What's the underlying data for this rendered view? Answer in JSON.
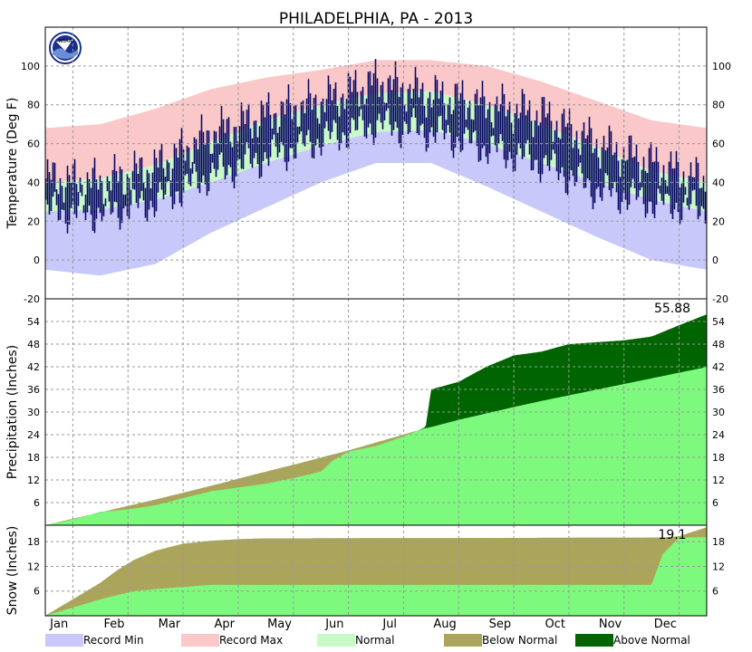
{
  "title": "PHILADELPHIA, PA - 2013",
  "logo_text": "NOAA",
  "colors": {
    "record_min": "#c8c8fa",
    "record_max": "#fac8c8",
    "normal": "#c8fac8",
    "actual_temp": "#0a0a64",
    "below_normal": "#aaa55a",
    "above_normal": "#006400",
    "normal_precip": "#7dfa7d"
  },
  "month_labels": [
    "Jan",
    "Feb",
    "Mar",
    "Apr",
    "May",
    "Jun",
    "Jul",
    "Aug",
    "Sep",
    "Oct",
    "Nov",
    "Dec"
  ],
  "chart_data": [
    {
      "type": "area",
      "ylabel": "Temperature (Deg F)",
      "ylim": [
        -20,
        120
      ],
      "yticks": [
        -20,
        0,
        20,
        40,
        60,
        80,
        100
      ],
      "grid": true,
      "x_unit": "month",
      "x": [
        0,
        1,
        2,
        3,
        4,
        5,
        6,
        7,
        8,
        9,
        10,
        11,
        12
      ],
      "series": [
        {
          "name": "Record Max",
          "values": [
            68,
            70,
            78,
            88,
            94,
            98,
            103,
            103,
            100,
            92,
            82,
            72,
            68
          ]
        },
        {
          "name": "Normal High",
          "values": [
            40,
            42,
            49,
            61,
            72,
            80,
            86,
            87,
            80,
            70,
            58,
            46,
            40
          ]
        },
        {
          "name": "Normal Low",
          "values": [
            25,
            26,
            31,
            40,
            50,
            59,
            66,
            67,
            60,
            50,
            40,
            31,
            25
          ]
        },
        {
          "name": "Record Min",
          "values": [
            -5,
            -8,
            -2,
            14,
            27,
            40,
            50,
            50,
            38,
            25,
            12,
            0,
            -5
          ]
        },
        {
          "name": "Actual High",
          "values": [
            42,
            40,
            48,
            65,
            75,
            82,
            92,
            85,
            80,
            75,
            60,
            50,
            40
          ]
        },
        {
          "name": "Actual Low",
          "values": [
            25,
            24,
            30,
            44,
            53,
            62,
            70,
            66,
            58,
            50,
            36,
            30,
            26
          ]
        }
      ]
    },
    {
      "type": "area",
      "ylabel": "Precipitation (Inches)",
      "ylim": [
        0,
        60
      ],
      "yticks": [
        6,
        12,
        18,
        24,
        30,
        36,
        42,
        48,
        54
      ],
      "grid": true,
      "annotation": "55.88",
      "x_unit": "month",
      "x": [
        0,
        0.5,
        1,
        1.5,
        2,
        2.5,
        3,
        3.5,
        4,
        4.5,
        5,
        5.2,
        5.5,
        6,
        6.5,
        6.9,
        7,
        7.5,
        8,
        8.5,
        9,
        9.5,
        10,
        10.5,
        11,
        11.5,
        12
      ],
      "series": [
        {
          "name": "Actual",
          "values": [
            0,
            1.5,
            3.5,
            4.2,
            5.3,
            7.2,
            9,
            10,
            11,
            12.5,
            14.2,
            17,
            19.5,
            21,
            23.5,
            26,
            36,
            38,
            42,
            45,
            46,
            48,
            48.5,
            49,
            50,
            53,
            55.88
          ]
        },
        {
          "name": "Normal",
          "values": [
            0,
            1.7,
            3.4,
            5.1,
            6.8,
            8.6,
            10.4,
            12.3,
            14.2,
            16,
            17.9,
            18.7,
            19.8,
            21.9,
            24,
            25.7,
            26,
            27.9,
            29.6,
            31.3,
            32.9,
            34.4,
            35.9,
            37.4,
            38.9,
            40.4,
            41.9
          ]
        }
      ]
    },
    {
      "type": "area",
      "ylabel": "Snow (Inches)",
      "ylim": [
        0,
        22
      ],
      "yticks": [
        6,
        12,
        18
      ],
      "grid": true,
      "annotation": "19.1",
      "x_unit": "month",
      "x": [
        0,
        0.5,
        1,
        1.3,
        1.6,
        2,
        2.5,
        3,
        3.5,
        4,
        8,
        11,
        11.2,
        11.5,
        12
      ],
      "series": [
        {
          "name": "Actual",
          "values": [
            0,
            2,
            4,
            5,
            6,
            6.5,
            7,
            7.5,
            7.5,
            7.5,
            7.5,
            7.5,
            15,
            19,
            19.1
          ]
        },
        {
          "name": "Normal",
          "values": [
            0,
            4,
            8,
            11,
            13.5,
            15.8,
            17.5,
            18.2,
            18.6,
            18.8,
            18.9,
            19,
            19,
            19.3,
            21.5
          ]
        }
      ]
    }
  ],
  "legend": [
    {
      "label": "Record Min",
      "color": "#c8c8fa"
    },
    {
      "label": "Record Max",
      "color": "#fac8c8"
    },
    {
      "label": "Normal",
      "color": "#c8fac8"
    },
    {
      "label": "Below Normal",
      "color": "#aaa55a"
    },
    {
      "label": "Above Normal",
      "color": "#006400"
    }
  ]
}
